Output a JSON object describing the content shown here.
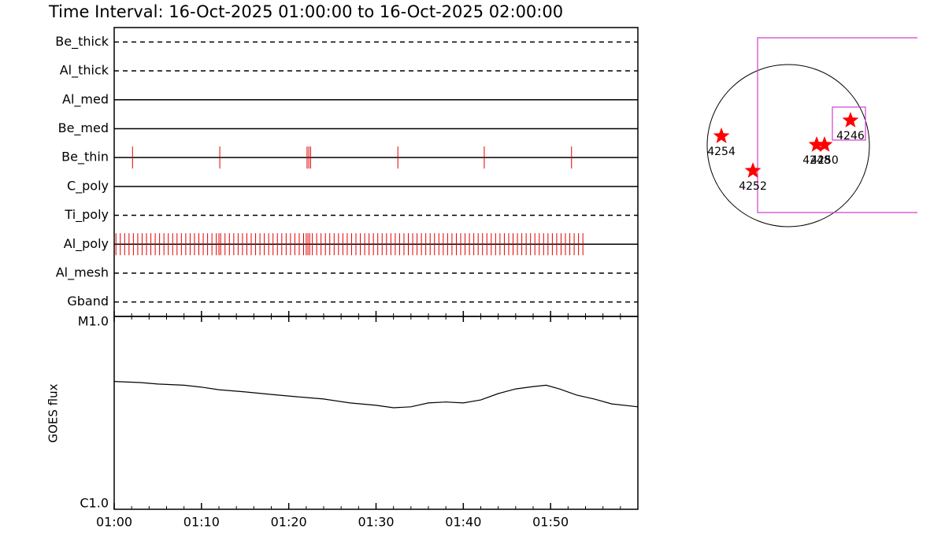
{
  "chart_data": [
    {
      "type": "timeline",
      "title": "Time Interval: 16-Oct-2025 01:00:00 to 16-Oct-2025 02:00:00",
      "color": "#e00000",
      "series": [
        {
          "name": "Be_thick",
          "line": "dashed",
          "values": []
        },
        {
          "name": "Al_thick",
          "line": "dashed",
          "values": []
        },
        {
          "name": "Al_med",
          "line": "solid",
          "values": []
        },
        {
          "name": "Be_med",
          "line": "solid",
          "values": []
        },
        {
          "name": "Be_thin",
          "line": "solid",
          "values": [
            2.1,
            12.1,
            22.1,
            22.3,
            22.5,
            32.5,
            42.4,
            52.4
          ]
        },
        {
          "name": "C_poly",
          "line": "solid",
          "values": []
        },
        {
          "name": "Ti_poly",
          "line": "dashed",
          "values": []
        },
        {
          "name": "Al_poly",
          "line": "solid",
          "values": [
            0.2,
            0.7,
            1.2,
            1.7,
            2.2,
            2.7,
            3.2,
            3.7,
            4.2,
            4.7,
            5.2,
            5.7,
            6.2,
            6.7,
            7.2,
            7.7,
            8.2,
            8.7,
            9.2,
            9.7,
            10.2,
            10.7,
            11.2,
            11.7,
            12.0,
            12.2,
            12.7,
            13.2,
            13.7,
            14.2,
            14.7,
            15.2,
            15.7,
            16.2,
            16.7,
            17.2,
            17.7,
            18.2,
            18.7,
            19.2,
            19.7,
            20.2,
            20.7,
            21.2,
            21.7,
            22.0,
            22.2,
            22.4,
            22.7,
            23.2,
            23.7,
            24.2,
            24.7,
            25.2,
            25.7,
            26.2,
            26.7,
            27.2,
            27.7,
            28.2,
            28.7,
            29.2,
            29.7,
            30.2,
            30.7,
            31.2,
            31.7,
            32.2,
            32.7,
            33.2,
            33.7,
            34.2,
            34.7,
            35.2,
            35.7,
            36.2,
            36.7,
            37.2,
            37.7,
            38.2,
            38.7,
            39.2,
            39.7,
            40.2,
            40.7,
            41.2,
            41.7,
            42.2,
            42.7,
            43.2,
            43.7,
            44.2,
            44.7,
            45.2,
            45.7,
            46.2,
            46.7,
            47.2,
            47.7,
            48.2,
            48.7,
            49.2,
            49.7,
            50.2,
            50.7,
            51.2,
            51.7,
            52.2,
            52.7,
            53.2,
            53.7
          ]
        },
        {
          "name": "Al_mesh",
          "line": "dashed",
          "values": []
        },
        {
          "name": "Gband",
          "line": "dashed",
          "values": []
        }
      ]
    },
    {
      "type": "line",
      "ylabel": "GOES flux",
      "log": true,
      "xlim": [
        0,
        60
      ],
      "xticks": [
        {
          "value": 0,
          "label": "01:00"
        },
        {
          "value": 10,
          "label": "01:10"
        },
        {
          "value": 20,
          "label": "01:20"
        },
        {
          "value": 30,
          "label": "01:30"
        },
        {
          "value": 40,
          "label": "01:40"
        },
        {
          "value": 50,
          "label": "01:50"
        }
      ],
      "xminor": [
        2,
        4,
        6,
        8,
        12,
        14,
        16,
        18,
        22,
        24,
        26,
        28,
        32,
        34,
        36,
        38,
        42,
        44,
        46,
        48,
        52,
        54,
        56,
        58
      ],
      "ylim": [
        1e-06,
        1e-05
      ],
      "yticks": [
        {
          "value": 1e-06,
          "label": "C1.0"
        },
        {
          "value": 1e-05,
          "label": "M1.0"
        }
      ],
      "color": "#000000",
      "x": [
        0,
        3,
        5,
        8,
        10,
        12,
        15,
        18,
        21,
        24,
        27,
        30,
        32,
        34,
        36,
        38,
        40,
        42,
        44,
        46,
        48,
        49.5,
        51,
        53,
        55,
        57,
        60
      ],
      "values": [
        4.6e-06,
        4.54e-06,
        4.46e-06,
        4.4e-06,
        4.3e-06,
        4.17e-06,
        4.06e-06,
        3.94e-06,
        3.83e-06,
        3.73e-06,
        3.56e-06,
        3.46e-06,
        3.36e-06,
        3.4e-06,
        3.56e-06,
        3.6e-06,
        3.56e-06,
        3.69e-06,
        3.98e-06,
        4.21e-06,
        4.33e-06,
        4.4e-06,
        4.21e-06,
        3.91e-06,
        3.73e-06,
        3.52e-06,
        3.4e-06
      ]
    },
    {
      "type": "scatter",
      "color": "#ff0000",
      "xlim": [
        -1100,
        1100
      ],
      "ylim": [
        -1100,
        1100
      ],
      "labels": [
        "4254",
        "4252",
        "4248",
        "4250",
        "4246"
      ],
      "x": [
        -792,
        -419,
        336,
        429,
        736
      ],
      "values": [
        112,
        -298,
        9,
        9,
        298
      ]
    }
  ]
}
